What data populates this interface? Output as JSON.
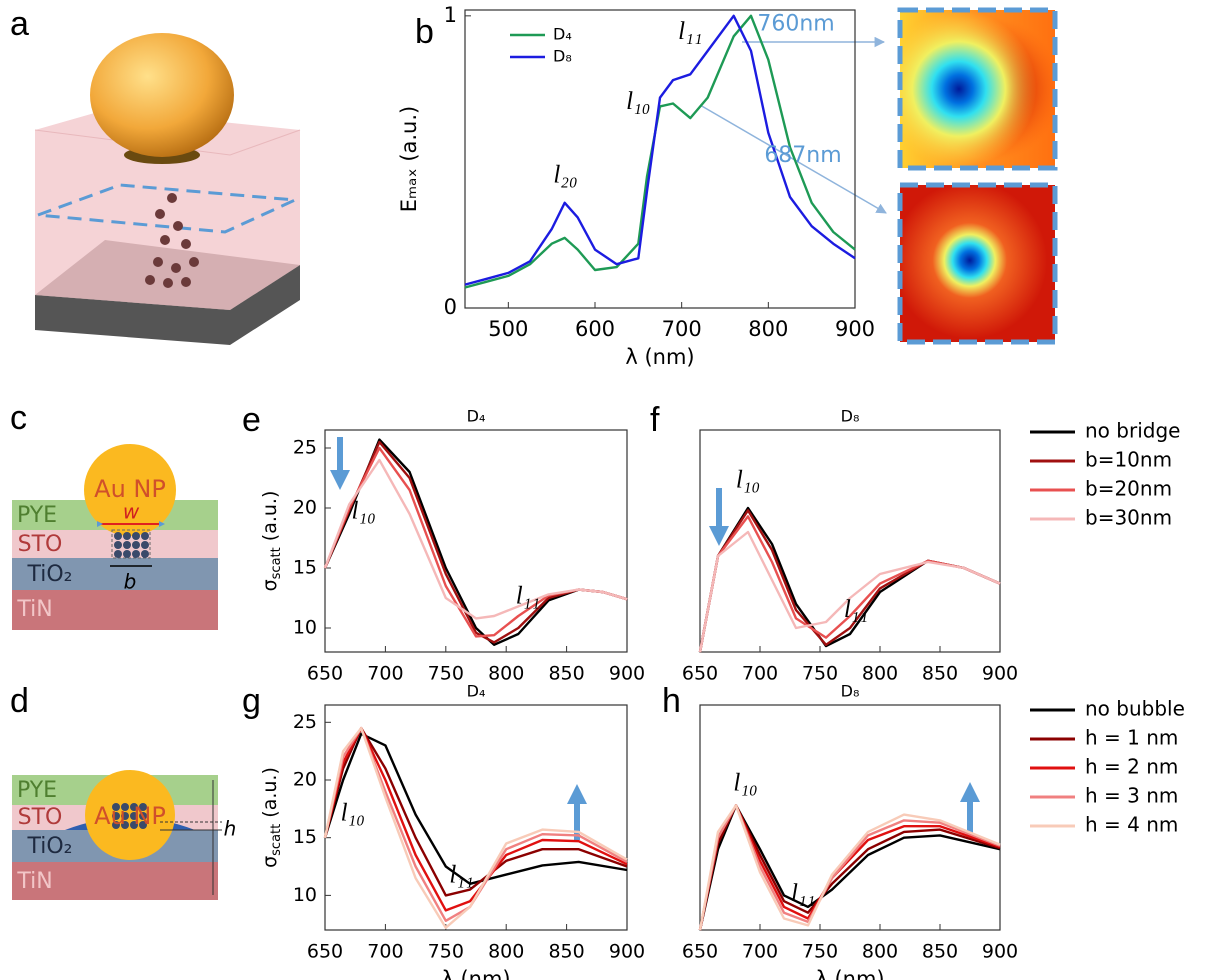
{
  "panel_labels": [
    "a",
    "b",
    "c",
    "d",
    "e",
    "f",
    "g",
    "h"
  ],
  "diagram_c": {
    "labels": [
      "Au NP",
      "PYE",
      "w",
      "STO",
      "TiO₂",
      "b",
      "TiN"
    ]
  },
  "diagram_d": {
    "labels": [
      "Au NP",
      "PYE",
      "STO",
      "TiO₂",
      "TiN",
      "h"
    ]
  },
  "chart_data": [
    {
      "type": "line",
      "xlabel": "λ (nm)",
      "ylabel": "Eₘₐₓ (a.u.)",
      "xlim": [
        450,
        900
      ],
      "ylim": [
        0,
        1.02
      ],
      "xticks": [
        500,
        600,
        700,
        800,
        900
      ],
      "yticks": [
        0,
        1
      ],
      "legend": "inside-top-left",
      "x": [
        450,
        475,
        500,
        525,
        550,
        565,
        580,
        600,
        625,
        650,
        660,
        675,
        690,
        710,
        730,
        760,
        780,
        800,
        825,
        850,
        875,
        900
      ],
      "series": [
        {
          "name": "D₄",
          "color": "#1e9a55",
          "values": [
            0.07,
            0.09,
            0.11,
            0.15,
            0.22,
            0.24,
            0.2,
            0.13,
            0.14,
            0.22,
            0.45,
            0.69,
            0.7,
            0.65,
            0.72,
            0.93,
            1.0,
            0.85,
            0.55,
            0.36,
            0.26,
            0.2
          ]
        },
        {
          "name": "D₈",
          "color": "#1c1ce0",
          "values": [
            0.08,
            0.1,
            0.12,
            0.16,
            0.27,
            0.36,
            0.31,
            0.2,
            0.15,
            0.17,
            0.4,
            0.72,
            0.78,
            0.8,
            0.88,
            1.0,
            0.88,
            0.6,
            0.38,
            0.28,
            0.22,
            0.17
          ]
        }
      ],
      "annotations": [
        "l₂₀",
        "l₁₀",
        "l₁₁",
        "760nm",
        "687nm"
      ]
    },
    {
      "type": "line",
      "title": "D₄",
      "ylabel": {
        "symbol": "σ",
        "sub": "scatt",
        "unit": " (a.u.)"
      },
      "xlim": [
        650,
        900
      ],
      "ylim": [
        8,
        26.5
      ],
      "xticks": [
        650,
        700,
        750,
        800,
        850,
        900
      ],
      "yticks": [
        10,
        15,
        20,
        25
      ],
      "x": [
        650,
        670,
        695,
        720,
        750,
        775,
        790,
        810,
        835,
        860,
        880,
        900
      ],
      "series": [
        {
          "color": "#000000",
          "values": [
            15,
            19.5,
            25.7,
            23,
            15,
            10,
            8.6,
            9.5,
            12.3,
            13.2,
            13,
            12.4
          ]
        },
        {
          "color": "#a01010",
          "values": [
            15,
            19.8,
            25.5,
            22.5,
            14.5,
            9.6,
            8.8,
            10,
            12.5,
            13.2,
            13,
            12.4
          ]
        },
        {
          "color": "#e85050",
          "values": [
            15,
            20,
            25,
            21.5,
            13.5,
            9.3,
            9.4,
            11,
            12.7,
            13.2,
            13,
            12.4
          ]
        },
        {
          "color": "#f5b8b8",
          "values": [
            15,
            20.3,
            24,
            19.5,
            12.5,
            10.8,
            11,
            11.8,
            12.8,
            13.2,
            13,
            12.4
          ]
        }
      ],
      "annotations": [
        "l₁₀",
        "l₁₁"
      ]
    },
    {
      "type": "line",
      "title": "D₈",
      "xlim": [
        650,
        900
      ],
      "ylim": [
        8,
        26.5
      ],
      "xticks": [
        650,
        700,
        750,
        800,
        850,
        900
      ],
      "legend": "right-outside",
      "x": [
        650,
        665,
        690,
        710,
        730,
        755,
        775,
        800,
        840,
        870,
        900
      ],
      "series": [
        {
          "name": "no bridge",
          "color": "#000000",
          "values": [
            8,
            16,
            20,
            17,
            12,
            8.5,
            9.5,
            13,
            15.6,
            15,
            13.7
          ]
        },
        {
          "name": "b=10nm",
          "color": "#a01010",
          "values": [
            8,
            16,
            19.8,
            16.5,
            11.5,
            8.6,
            10,
            13.3,
            15.6,
            15,
            13.7
          ]
        },
        {
          "name": "b=20nm",
          "color": "#e85050",
          "values": [
            8,
            16,
            19.3,
            15.5,
            10.8,
            9.2,
            11,
            13.7,
            15.6,
            15,
            13.7
          ]
        },
        {
          "name": "b=30nm",
          "color": "#f5b8b8",
          "values": [
            8,
            16,
            18,
            14,
            10,
            10.5,
            12.5,
            14.5,
            15.5,
            15,
            13.7
          ]
        }
      ],
      "annotations": [
        "l₁₀",
        "l₁₁"
      ]
    },
    {
      "type": "line",
      "title": "D₄",
      "xlabel": "λ (nm)",
      "ylabel": {
        "symbol": "σ",
        "sub": "scatt",
        "unit": " (a.u.)"
      },
      "xlim": [
        650,
        900
      ],
      "ylim": [
        7,
        26.5
      ],
      "xticks": [
        650,
        700,
        750,
        800,
        850,
        900
      ],
      "yticks": [
        10,
        15,
        20,
        25
      ],
      "x": [
        650,
        665,
        680,
        700,
        725,
        750,
        770,
        800,
        830,
        860,
        900
      ],
      "series": [
        {
          "color": "#000000",
          "values": [
            15,
            20,
            24,
            23,
            17,
            12.5,
            11,
            11.8,
            12.6,
            12.9,
            12.2
          ]
        },
        {
          "color": "#8b0000",
          "values": [
            15,
            21,
            24.5,
            21,
            15,
            10,
            10.5,
            13,
            14,
            14,
            12.5
          ]
        },
        {
          "color": "#e01010",
          "values": [
            15,
            21.5,
            24.5,
            20,
            13.5,
            8.7,
            9.5,
            13.5,
            14.8,
            14.7,
            12.7
          ]
        },
        {
          "color": "#f08080",
          "values": [
            15,
            22,
            24.5,
            19,
            12.5,
            7.8,
            9,
            14,
            15.3,
            15.2,
            12.9
          ]
        },
        {
          "color": "#f8cbb8",
          "values": [
            15,
            22.5,
            24.5,
            18.5,
            11.5,
            7.2,
            9,
            14.5,
            15.7,
            15.5,
            13.1
          ]
        }
      ],
      "annotations": [
        "l₁₀",
        "l₁₁"
      ]
    },
    {
      "type": "line",
      "title": "D₈",
      "xlabel": "λ (nm)",
      "xlim": [
        650,
        900
      ],
      "ylim": [
        7,
        26.5
      ],
      "xticks": [
        650,
        700,
        750,
        800,
        850,
        900
      ],
      "legend": "right-outside",
      "x": [
        650,
        665,
        680,
        700,
        720,
        740,
        760,
        790,
        820,
        850,
        900
      ],
      "series": [
        {
          "name": "no bubble",
          "color": "#000000",
          "values": [
            7,
            14,
            17.8,
            14,
            10,
            9,
            10.5,
            13.5,
            15,
            15.2,
            14
          ]
        },
        {
          "name": "h = 1 nm",
          "color": "#8b0000",
          "values": [
            7,
            14.5,
            17.8,
            13.5,
            9.5,
            8.5,
            11,
            14,
            15.5,
            15.7,
            14.1
          ]
        },
        {
          "name": "h = 2 nm",
          "color": "#e01010",
          "values": [
            7,
            15,
            17.8,
            13,
            9,
            8,
            11.5,
            14.8,
            16,
            16,
            14.2
          ]
        },
        {
          "name": "h = 3 nm",
          "color": "#f08080",
          "values": [
            7,
            15,
            17.8,
            12.5,
            8.5,
            7.7,
            11.5,
            15.2,
            16.5,
            16.3,
            14.3
          ]
        },
        {
          "name": "h = 4 nm",
          "color": "#f8cbb8",
          "values": [
            7,
            15.5,
            17.8,
            12,
            8,
            7.4,
            11.8,
            15.5,
            17,
            16.5,
            14.4
          ]
        }
      ],
      "annotations": [
        "l₁₀",
        "l₁₁"
      ]
    }
  ]
}
